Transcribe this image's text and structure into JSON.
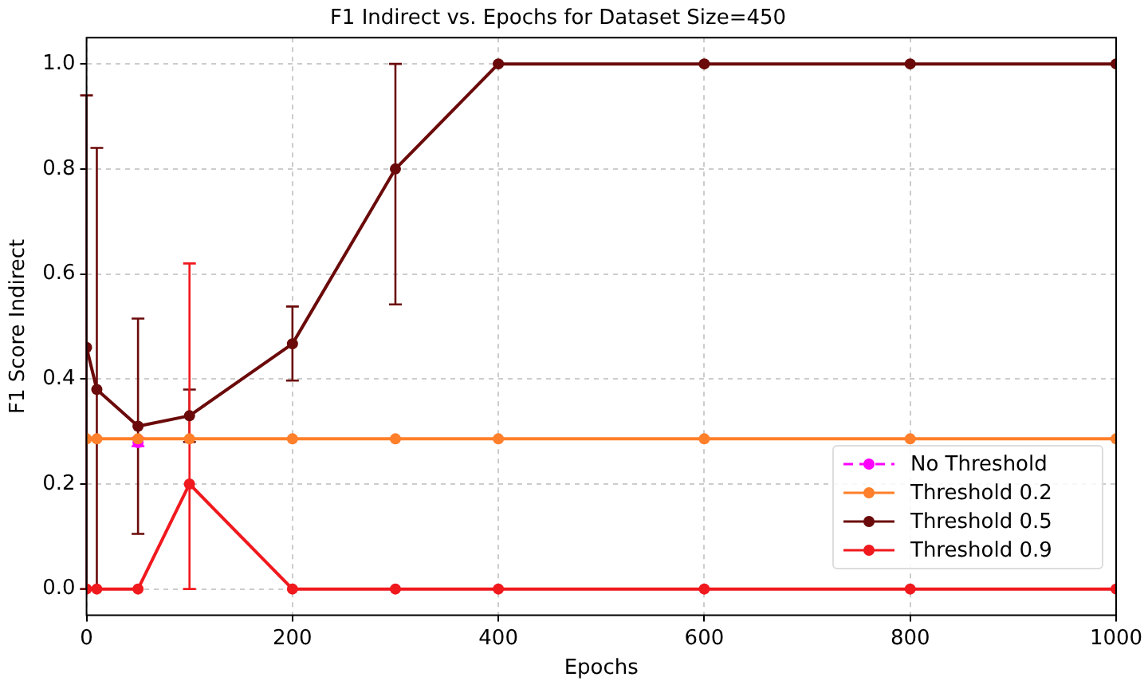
{
  "chart_data": {
    "type": "line",
    "title": "F1 Indirect vs. Epochs for Dataset Size=450",
    "xlabel": "Epochs",
    "ylabel": "F1 Score Indirect",
    "xlim": [
      0,
      1000
    ],
    "xticks": [
      0,
      200,
      400,
      600,
      800,
      1000
    ],
    "ylim": [
      -0.05,
      1.05
    ],
    "yticks": [
      {
        "value": 0,
        "label": "0.0"
      },
      0.2,
      0.4,
      0.6,
      0.8,
      {
        "value": 1,
        "label": "1.0"
      }
    ],
    "grid": true,
    "legend": "bottom right",
    "marker": "circle",
    "series": [
      {
        "name": "No Threshold",
        "color": "#ff00ff",
        "line_style": "dashed",
        "x": [
          50
        ],
        "values": [
          0.279
        ],
        "errors": [
          [
            0.272,
            0.288
          ]
        ]
      },
      {
        "name": "Threshold 0.2",
        "color": "#ff7f2a",
        "x": [
          0,
          10,
          50,
          100,
          200,
          300,
          400,
          600,
          800,
          1000
        ],
        "values": [
          0.286,
          0.286,
          0.286,
          0.286,
          0.286,
          0.286,
          0.286,
          0.286,
          0.286,
          0.286
        ]
      },
      {
        "name": "Threshold 0.5",
        "color": "#6b0a0a",
        "x": [
          0,
          10,
          50,
          100,
          200,
          300,
          400,
          600,
          800,
          1000
        ],
        "values": [
          0.46,
          0.38,
          0.31,
          0.33,
          0.467,
          0.8,
          1.0,
          1.0,
          1.0,
          1.0
        ],
        "errors": [
          [
            0,
            0.94
          ],
          [
            0,
            0.84
          ],
          [
            0.105,
            0.515
          ],
          [
            0.28,
            0.38
          ],
          [
            0.397,
            0.538
          ],
          [
            0.542,
            1.0
          ],
          null,
          null,
          null,
          null
        ]
      },
      {
        "name": "Threshold 0.9",
        "color": "#f0191e",
        "x": [
          0,
          10,
          50,
          100,
          200,
          300,
          400,
          600,
          800,
          1000
        ],
        "values": [
          0,
          0,
          0,
          0.2,
          0,
          0,
          0,
          0,
          0,
          0
        ],
        "errors": [
          null,
          null,
          null,
          [
            0,
            0.62
          ],
          null,
          null,
          null,
          null,
          null,
          null
        ]
      }
    ]
  }
}
